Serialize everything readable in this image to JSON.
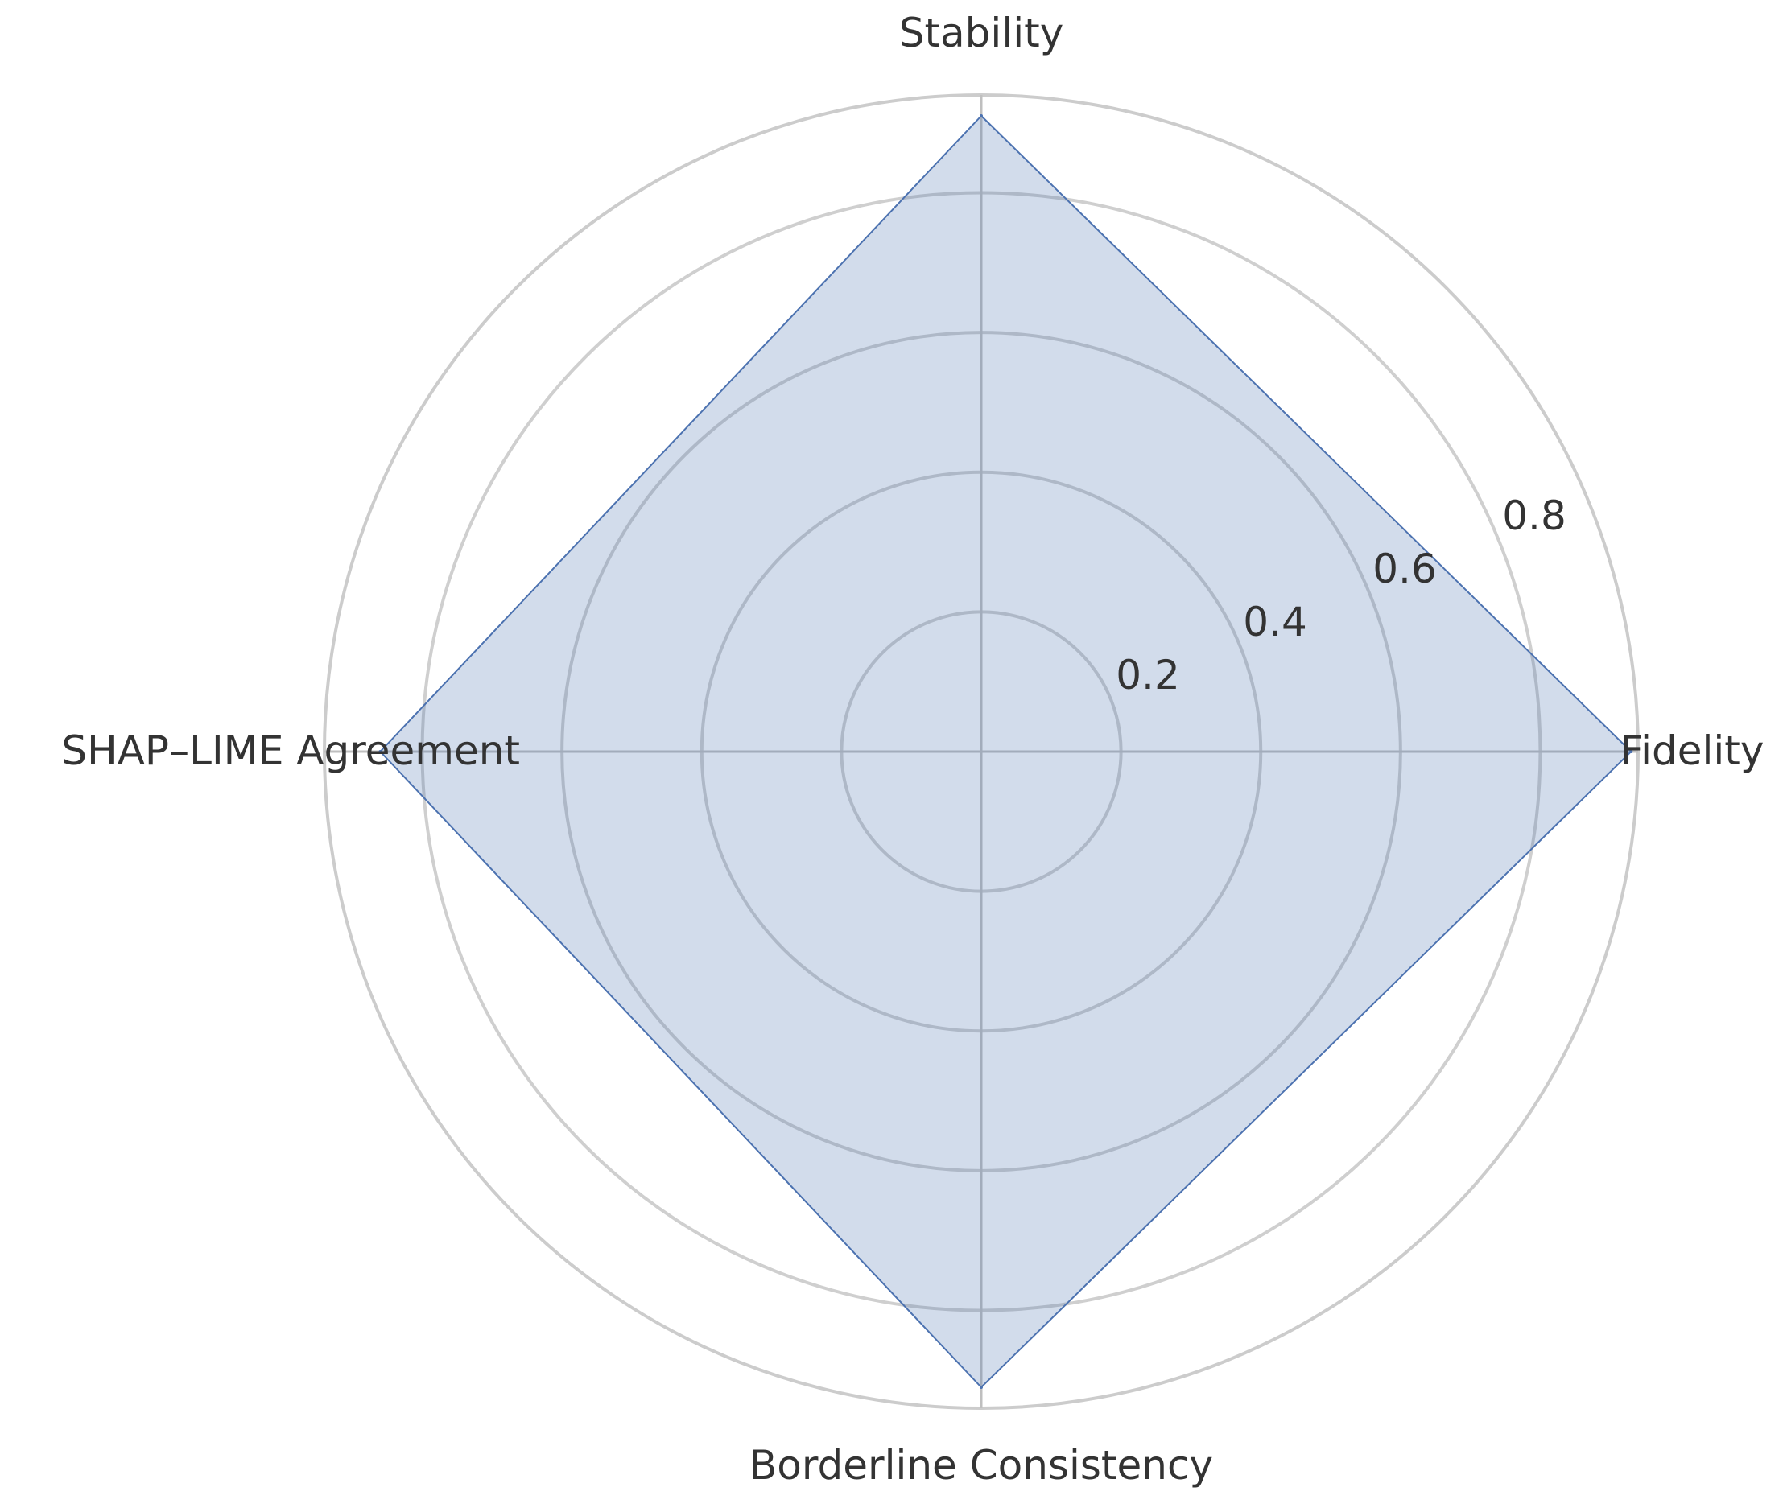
{
  "chart_data": {
    "type": "radar",
    "axes": [
      "Stability",
      "Fidelity",
      "Borderline Consistency",
      "SHAP–LIME Agreement"
    ],
    "series": [
      {
        "values": [
          0.91,
          0.93,
          0.91,
          0.86
        ]
      }
    ],
    "r_ticks": [
      "0.2",
      "0.4",
      "0.6",
      "0.8"
    ],
    "r_tick_values": [
      0.2,
      0.4,
      0.6,
      0.8
    ],
    "rlim": [
      0,
      0.94
    ],
    "grid": true,
    "colors": {
      "fill": "#4C72B0",
      "line": "#4C72B0",
      "grid": "#cccccc",
      "text": "#333333"
    }
  }
}
